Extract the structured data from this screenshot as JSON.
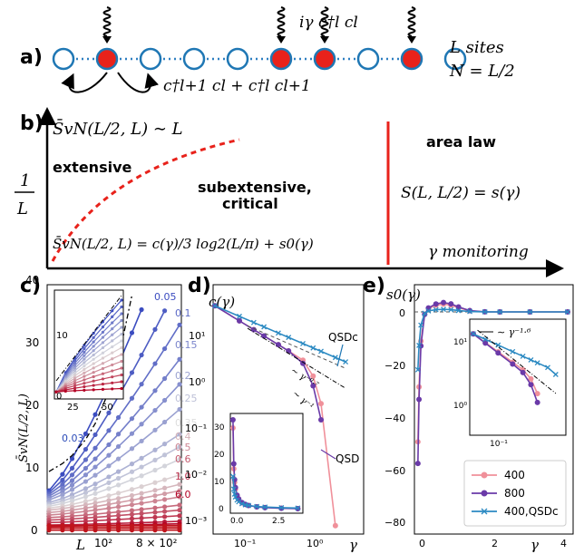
{
  "panel_a": {
    "label": "a)",
    "hopping_label": "c†l+1 cl + c†l cl+1",
    "measure_label": "iγ c†l cl",
    "sites_label": "L sites",
    "n_label": "N = L/2",
    "occupied_color": "#e8221b",
    "empty_color": "#1f77b4",
    "bond_color": "#2e7fc1"
  },
  "panel_b": {
    "label": "b)",
    "y_label_num": "1",
    "y_label_den": "L",
    "x_label": "γ monitoring",
    "extensive_formula": "S̄vN(L/2, L) ∼ L",
    "extensive_label": "extensive",
    "sub_label_line1": "subextensive,",
    "sub_label_line2": "critical",
    "critical_formula": "S̄vN(L/2, L) = c(γ)/3 log2(L/π) + s0(γ)",
    "area_law_label": "area law",
    "area_formula": "S(L, L/2) = s(γ)",
    "boundary_color": "#e8221b"
  },
  "panel_c": {
    "label": "c)",
    "y_label": "S̄vN(L/2, L)",
    "x_label": "L",
    "y_ticks": [
      "0",
      "10",
      "20",
      "30",
      "40"
    ],
    "x_ticks": [
      "10²",
      "8 × 10²"
    ],
    "inset_x_ticks": [
      "25",
      "50"
    ],
    "inset_y_ticks": [
      "0",
      "10"
    ],
    "gamma_labels": [
      "0.05",
      "0.1",
      "0.15",
      "0.2",
      "0.25",
      "0.35",
      "0.4",
      "0.5",
      "0.6",
      "1.0",
      "6.0"
    ],
    "gamma_label_small": "0.03"
  },
  "panel_d": {
    "label": "d)",
    "y_label": "c(γ)",
    "x_label": "γ",
    "y_ticks": [
      "10¹",
      "10⁰",
      "10⁻¹",
      "10⁻²",
      "10⁻³"
    ],
    "x_ticks": [
      "10⁻¹",
      "10⁰"
    ],
    "annot_qsdc": "QSDc",
    "annot_qsd": "QSD",
    "slope1": "∼ γ⁻⁰·⁷",
    "slope2": "∼ γ⁻¹",
    "inset_y_ticks": [
      "0",
      "10",
      "20",
      "30"
    ],
    "inset_x_ticks": [
      "0.0",
      "2.5"
    ]
  },
  "panel_e": {
    "label": "e)",
    "y_label": "s0(γ)",
    "x_label": "γ",
    "y_ticks": [
      "0",
      "−20",
      "−40",
      "−60",
      "−80"
    ],
    "x_ticks": [
      "0",
      "2",
      "4"
    ],
    "inset_annot": "∼ γ⁻¹·⁶",
    "inset_y_ticks": [
      "10¹",
      "10⁰"
    ],
    "inset_x_ticks": [
      "10⁻¹"
    ],
    "legend": [
      "400",
      "800",
      "400,QSDc"
    ],
    "legend_colors": [
      "#f0909a",
      "#6a3aa8",
      "#2c8ac2"
    ]
  }
}
